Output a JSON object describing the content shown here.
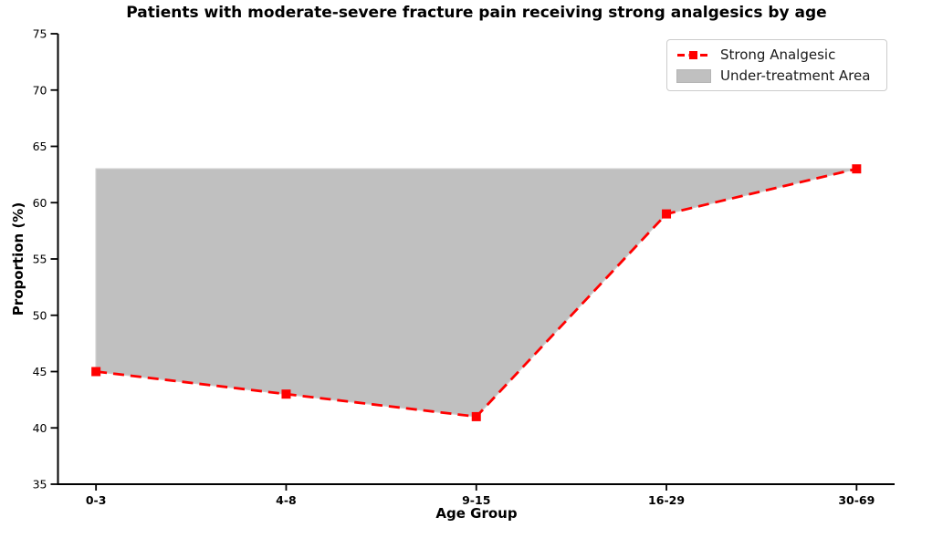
{
  "figure": {
    "title": "Patients with moderate-severe fracture pain receiving strong analgesics by age",
    "xlabel": "Age Group",
    "ylabel": "Proportion (%)"
  },
  "legend": {
    "items": [
      {
        "label": "Strong Analgesic",
        "glyph": "red-dashed-line-with-square-marker"
      },
      {
        "label": "Under-treatment Area",
        "glyph": "gray-filled-patch"
      }
    ],
    "position": "upper right"
  },
  "chart_data": {
    "type": "line",
    "title": "Patients with moderate-severe fracture pain receiving strong analgesics by age",
    "xlabel": "Age Group",
    "ylabel": "Proportion (%)",
    "categories": [
      "0-3",
      "4-8",
      "9-15",
      "16-29",
      "30-69"
    ],
    "series": [
      {
        "name": "Strong Analgesic",
        "values": [
          45,
          43,
          41,
          59,
          63
        ],
        "color": "#ff0000",
        "line_style": "dashed",
        "marker": "square"
      }
    ],
    "under_treatment_area": {
      "name": "Under-treatment Area",
      "upper_level": 63,
      "lower_bound": "Strong Analgesic line",
      "fill_color": "#c0c0c0",
      "edge_color": "#cccccc"
    },
    "ylim": [
      35,
      75
    ],
    "yticks": [
      35,
      40,
      45,
      50,
      55,
      60,
      65,
      70,
      75
    ],
    "grid": false,
    "legend_position": "upper right",
    "axis_color": "#000000",
    "spines": [
      "left",
      "bottom"
    ]
  }
}
